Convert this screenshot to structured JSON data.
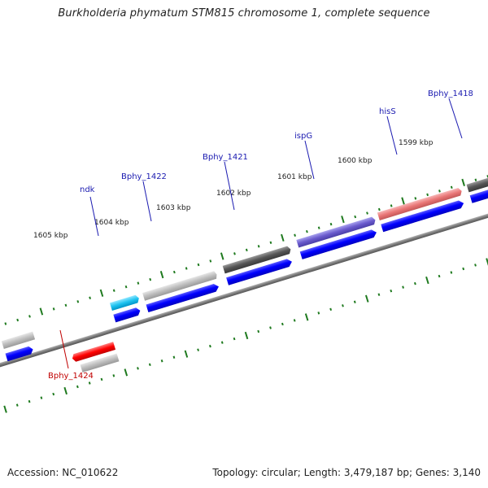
{
  "title": "Burkholderia phymatum STM815 chromosome 1, complete sequence",
  "footer": {
    "accession": "Accession: NC_010622",
    "summary": "Topology: circular; Length: 3,479,187 bp; Genes: 3,140"
  },
  "colors": {
    "backbone": "#8a8a8a",
    "ticks": "#1f7a1f",
    "cds": "#0000ff",
    "label_plus": "#1a1ab0",
    "label_minus": "#c00000"
  },
  "scale_labels": [
    "1605 kbp",
    "1604 kbp",
    "1603 kbp",
    "1602 kbp",
    "1601 kbp",
    "1600 kbp",
    "1599 kbp"
  ],
  "genes": [
    {
      "name": "ndk",
      "strand": "+",
      "color": "cyan"
    },
    {
      "name": "Bphy_1422",
      "strand": "+",
      "color": "lightgray"
    },
    {
      "name": "Bphy_1421",
      "strand": "+",
      "color": "darkgray"
    },
    {
      "name": "ispG",
      "strand": "+",
      "color": "purple"
    },
    {
      "name": "hisS",
      "strand": "+",
      "color": "salmon"
    },
    {
      "name": "Bphy_1418",
      "strand": "+",
      "color": "darkgray"
    },
    {
      "name": "Bphy_1424",
      "strand": "-",
      "color": "red"
    }
  ]
}
